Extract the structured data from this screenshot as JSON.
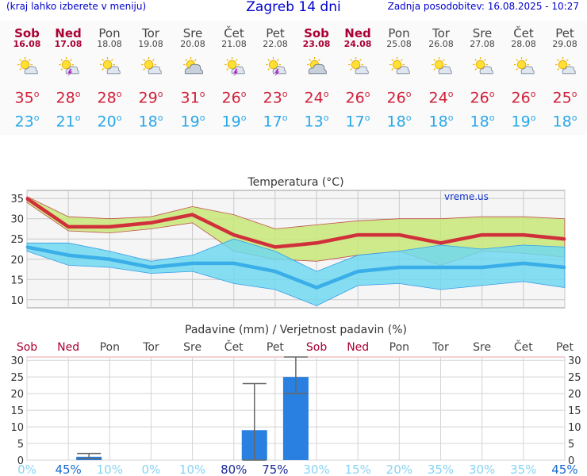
{
  "header": {
    "left": "(kraj lahko izberete v meniju)",
    "title": "Zagreb 14 dni",
    "right": "Zadnja posodobitev: 16.08.2025 - 10:27"
  },
  "days": [
    {
      "name": "Sob",
      "date": "16.08",
      "weekend": true,
      "icon": "sun-cloud-icon",
      "max": "35",
      "min": "23"
    },
    {
      "name": "Ned",
      "date": "17.08",
      "weekend": true,
      "icon": "sun-cloud-thunder-icon",
      "max": "28",
      "min": "21"
    },
    {
      "name": "Pon",
      "date": "18.08",
      "weekend": false,
      "icon": "sun-cloud-icon",
      "max": "28",
      "min": "20"
    },
    {
      "name": "Tor",
      "date": "19.08",
      "weekend": false,
      "icon": "sun-cloud-icon",
      "max": "29",
      "min": "18"
    },
    {
      "name": "Sre",
      "date": "20.08",
      "weekend": false,
      "icon": "cloud-sun-icon",
      "max": "31",
      "min": "19"
    },
    {
      "name": "Čet",
      "date": "21.08",
      "weekend": false,
      "icon": "sun-cloud-thunder-icon",
      "max": "26",
      "min": "19"
    },
    {
      "name": "Pet",
      "date": "22.08",
      "weekend": false,
      "icon": "sun-cloud-thunder-icon",
      "max": "23",
      "min": "17"
    },
    {
      "name": "Sob",
      "date": "23.08",
      "weekend": true,
      "icon": "cloud-sun-icon",
      "max": "24",
      "min": "13"
    },
    {
      "name": "Ned",
      "date": "24.08",
      "weekend": true,
      "icon": "sun-cloud-icon",
      "max": "26",
      "min": "17"
    },
    {
      "name": "Pon",
      "date": "25.08",
      "weekend": false,
      "icon": "sun-cloud-icon",
      "max": "26",
      "min": "18"
    },
    {
      "name": "Tor",
      "date": "26.08",
      "weekend": false,
      "icon": "sun-cloud-icon",
      "max": "24",
      "min": "18"
    },
    {
      "name": "Sre",
      "date": "27.08",
      "weekend": false,
      "icon": "sun-cloud-icon",
      "max": "26",
      "min": "18"
    },
    {
      "name": "Čet",
      "date": "28.08",
      "weekend": false,
      "icon": "sun-cloud-icon",
      "max": "26",
      "min": "19"
    },
    {
      "name": "Pet",
      "date": "29.08",
      "weekend": false,
      "icon": "sun-cloud-icon",
      "max": "25",
      "min": "18"
    }
  ],
  "colors": {
    "header_text": "#0000cc",
    "weekend": "#aa0033",
    "max_line": "#d0303a",
    "max_band": "#c8e878",
    "min_line": "#3aaee8",
    "min_band": "#70d8ee",
    "bar": "#2a80e0"
  },
  "chart_data": [
    {
      "type": "line",
      "title": "Temperatura (°C)",
      "watermark": "vreme.us",
      "x": [
        "Sob",
        "Ned",
        "Pon",
        "Tor",
        "Sre",
        "Čet",
        "Pet",
        "Sob",
        "Ned",
        "Pon",
        "Tor",
        "Sre",
        "Čet",
        "Pet"
      ],
      "ylim": [
        8,
        37
      ],
      "yticks": [
        10,
        15,
        20,
        25,
        30,
        35
      ],
      "series": [
        {
          "role": "max",
          "values": [
            35,
            28,
            28,
            29,
            31,
            26,
            23,
            24,
            26,
            26,
            24,
            26,
            26,
            25
          ],
          "band_high": [
            35.5,
            30.5,
            30,
            30.5,
            33,
            31,
            27.5,
            28.5,
            29.5,
            30,
            30,
            30.5,
            30.5,
            30
          ],
          "band_low": [
            34,
            27,
            26.5,
            27.5,
            29,
            22,
            20,
            19.5,
            21,
            22,
            18.5,
            22,
            21.5,
            20.5
          ]
        },
        {
          "role": "min",
          "values": [
            23,
            21,
            20,
            18,
            19,
            19,
            17,
            13,
            17,
            18,
            18,
            18,
            19,
            18
          ],
          "band_high": [
            24,
            24,
            22,
            19.5,
            21,
            25,
            22,
            17,
            21,
            22,
            23.5,
            22.5,
            23.5,
            23
          ],
          "band_low": [
            22,
            18.5,
            18,
            16.5,
            17,
            14,
            12.5,
            8.5,
            13.5,
            14,
            12.5,
            13.5,
            14.5,
            13
          ]
        }
      ],
      "grid": true
    },
    {
      "type": "bar",
      "title": "Padavine (mm) / Verjetnost padavin (%)",
      "categories": [
        "Sob",
        "Ned",
        "Pon",
        "Tor",
        "Sre",
        "Čet",
        "Pet",
        "Sob",
        "Ned",
        "Pon",
        "Tor",
        "Sre",
        "Čet",
        "Pet"
      ],
      "values": [
        0,
        1,
        0,
        0,
        0,
        9,
        25,
        0,
        0,
        0,
        0,
        0,
        0,
        0
      ],
      "error_low": [
        0,
        0.5,
        0,
        0,
        0,
        0,
        20,
        0,
        0,
        0,
        0,
        0,
        0,
        0
      ],
      "error_high": [
        0,
        2,
        0,
        0,
        0,
        23,
        31,
        0,
        0,
        0,
        0,
        0,
        0,
        0
      ],
      "probability": [
        "0%",
        "45%",
        "10%",
        "0%",
        "10%",
        "80%",
        "75%",
        "30%",
        "15%",
        "20%",
        "35%",
        "30%",
        "35%",
        "45%"
      ],
      "ylim": [
        0,
        31
      ],
      "yticks": [
        0,
        5,
        10,
        15,
        20,
        25,
        30
      ],
      "grid": true
    }
  ]
}
